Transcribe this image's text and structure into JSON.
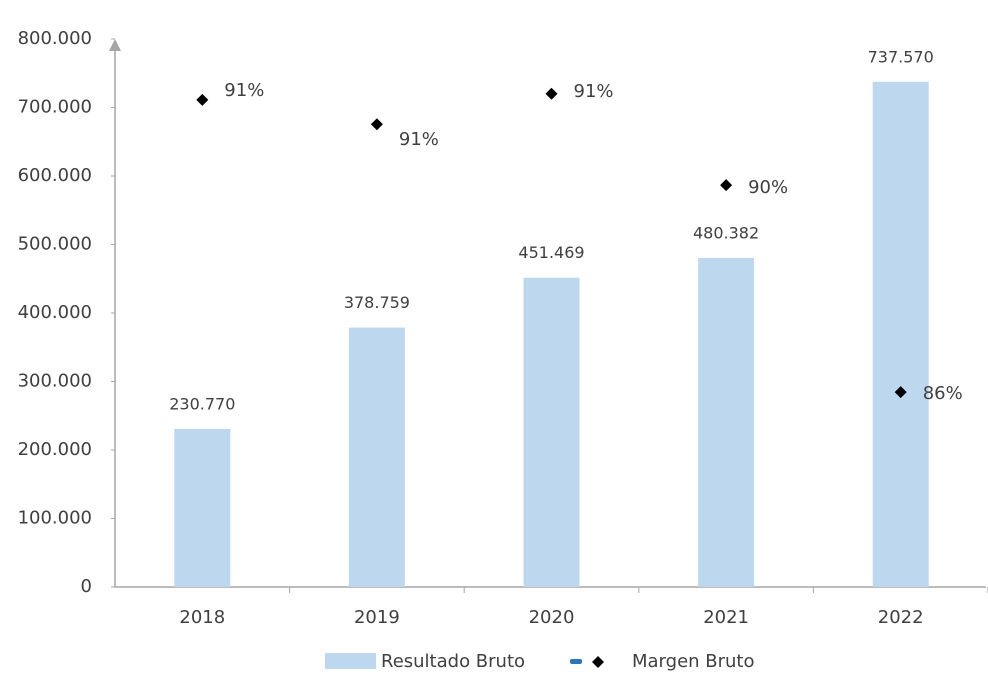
{
  "chart_data": {
    "type": "bar",
    "categories": [
      "2018",
      "2019",
      "2020",
      "2021",
      "2022"
    ],
    "ylim": [
      0,
      800000
    ],
    "yticks": [
      0,
      {
        "value": 100000,
        "label": "100.000"
      },
      {
        "value": 200000,
        "label": "200.000"
      },
      {
        "value": 300000,
        "label": "300.000"
      },
      {
        "value": 400000,
        "label": "400.000"
      },
      {
        "value": 500000,
        "label": "500.000"
      },
      {
        "value": 600000,
        "label": "600.000"
      },
      {
        "value": 700000,
        "label": "700.000"
      },
      {
        "value": 800000,
        "label": "800.000"
      }
    ],
    "y2lim": [
      83.2,
      92.2
    ],
    "series": [
      {
        "name": "Resultado Bruto",
        "type": "bar",
        "color": "#bdd7ee",
        "values": [
          230770,
          378759,
          451469,
          480382,
          737570
        ],
        "value_labels": [
          "230.770",
          "378.759",
          "451.469",
          "480.382",
          "737.570"
        ]
      },
      {
        "name": "Margen Bruto",
        "type": "scatter",
        "axis": "y2",
        "color": "#000000",
        "values": [
          91.2,
          90.8,
          91.3,
          89.8,
          86.4
        ],
        "value_labels": [
          "91%",
          "91%",
          "91%",
          "90%",
          "86%"
        ]
      }
    ]
  }
}
